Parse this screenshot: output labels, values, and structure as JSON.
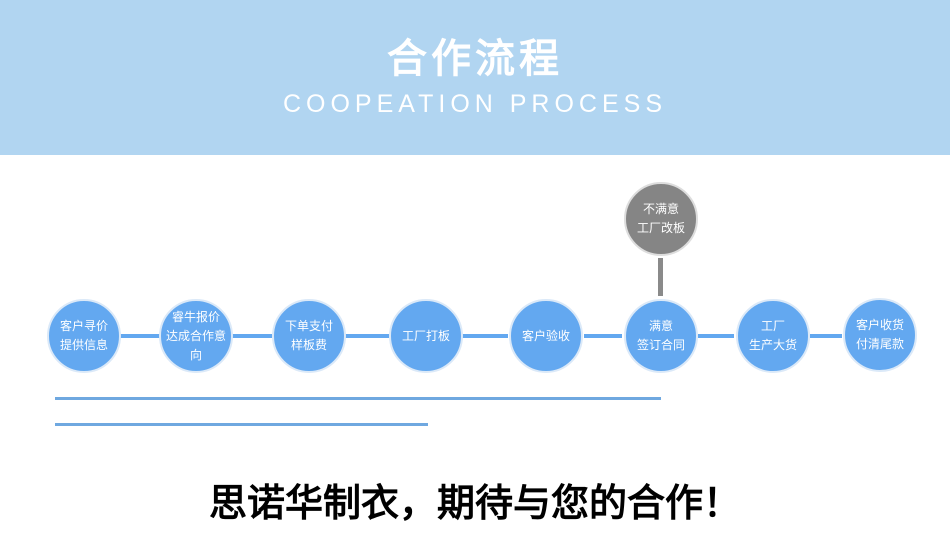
{
  "header": {
    "title": "合作流程",
    "subtitle": "COOPEATION PROCESS"
  },
  "steps": [
    "客户寻价\n提供信息",
    "睿牛报价\n达成合作意向",
    "下单支付\n样板费",
    "工厂打板",
    "客户验收",
    "满意\n签订合同",
    "工厂\n生产大货",
    "客户收货\n付清尾款"
  ],
  "branch": "不满意\n工厂改板",
  "slogan": "思诺华制衣，期待与您的合作！",
  "colors": {
    "header": "#b1d5f1",
    "step": "#63a8f0",
    "branch": "#858585"
  }
}
